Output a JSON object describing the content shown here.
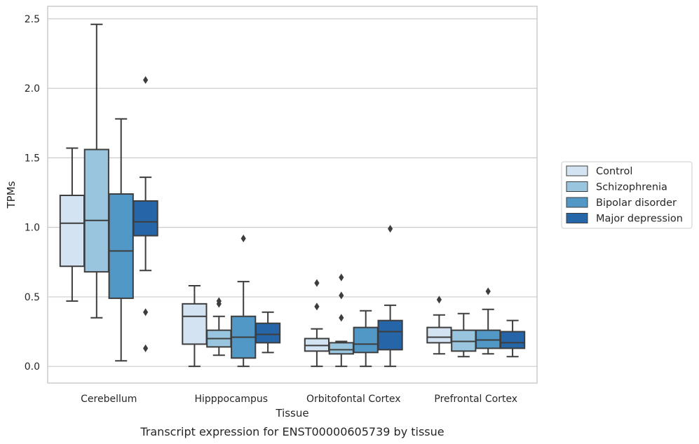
{
  "chart_data": {
    "type": "box",
    "caption": "Transcript expression for ENST00000605739 by tissue",
    "xlabel": "Tissue",
    "ylabel": "TPMs",
    "ylim": [
      -0.12,
      2.59
    ],
    "yticks": [
      0.0,
      0.5,
      1.0,
      1.5,
      2.0,
      2.5
    ],
    "ytick_labels": [
      "0.0",
      "0.5",
      "1.0",
      "1.5",
      "2.0",
      "2.5"
    ],
    "grid": "horizontal",
    "legend_position": "right",
    "categories": [
      "Cerebellum",
      "Hipppocampus",
      "Orbitofontal Cortex",
      "Prefrontal Cortex"
    ],
    "series": [
      {
        "name": "Control",
        "color": "#d3e3f2",
        "boxes": [
          {
            "whisker_low": 0.47,
            "q1": 0.72,
            "median": 1.03,
            "q3": 1.23,
            "whisker_high": 1.57,
            "outliers": []
          },
          {
            "whisker_low": 0.0,
            "q1": 0.16,
            "median": 0.36,
            "q3": 0.45,
            "whisker_high": 0.58,
            "outliers": []
          },
          {
            "whisker_low": 0.0,
            "q1": 0.11,
            "median": 0.15,
            "q3": 0.2,
            "whisker_high": 0.27,
            "outliers": [
              0.43,
              0.6
            ]
          },
          {
            "whisker_low": 0.09,
            "q1": 0.17,
            "median": 0.21,
            "q3": 0.28,
            "whisker_high": 0.37,
            "outliers": [
              0.48
            ]
          }
        ]
      },
      {
        "name": "Schizophrenia",
        "color": "#9ac5de",
        "boxes": [
          {
            "whisker_low": 0.35,
            "q1": 0.68,
            "median": 1.05,
            "q3": 1.56,
            "whisker_high": 2.46,
            "outliers": []
          },
          {
            "whisker_low": 0.08,
            "q1": 0.14,
            "median": 0.2,
            "q3": 0.26,
            "whisker_high": 0.36,
            "outliers": [
              0.45,
              0.47
            ]
          },
          {
            "whisker_low": 0.0,
            "q1": 0.09,
            "median": 0.12,
            "q3": 0.17,
            "whisker_high": 0.18,
            "outliers": [
              0.35,
              0.51,
              0.64
            ]
          },
          {
            "whisker_low": 0.07,
            "q1": 0.11,
            "median": 0.18,
            "q3": 0.26,
            "whisker_high": 0.38,
            "outliers": []
          }
        ]
      },
      {
        "name": "Bipolar disorder",
        "color": "#5198c7",
        "boxes": [
          {
            "whisker_low": 0.04,
            "q1": 0.49,
            "median": 0.83,
            "q3": 1.24,
            "whisker_high": 1.78,
            "outliers": []
          },
          {
            "whisker_low": 0.0,
            "q1": 0.06,
            "median": 0.21,
            "q3": 0.36,
            "whisker_high": 0.61,
            "outliers": [
              0.92
            ]
          },
          {
            "whisker_low": 0.0,
            "q1": 0.1,
            "median": 0.16,
            "q3": 0.28,
            "whisker_high": 0.4,
            "outliers": []
          },
          {
            "whisker_low": 0.09,
            "q1": 0.13,
            "median": 0.19,
            "q3": 0.26,
            "whisker_high": 0.41,
            "outliers": [
              0.54
            ]
          }
        ]
      },
      {
        "name": "Major depression",
        "color": "#2665a8",
        "boxes": [
          {
            "whisker_low": 0.69,
            "q1": 0.94,
            "median": 1.04,
            "q3": 1.19,
            "whisker_high": 1.36,
            "outliers": [
              0.13,
              0.39,
              2.06
            ]
          },
          {
            "whisker_low": 0.1,
            "q1": 0.17,
            "median": 0.23,
            "q3": 0.31,
            "whisker_high": 0.39,
            "outliers": []
          },
          {
            "whisker_low": 0.0,
            "q1": 0.12,
            "median": 0.25,
            "q3": 0.33,
            "whisker_high": 0.44,
            "outliers": [
              0.99
            ]
          },
          {
            "whisker_low": 0.07,
            "q1": 0.13,
            "median": 0.17,
            "q3": 0.25,
            "whisker_high": 0.33,
            "outliers": []
          }
        ]
      }
    ]
  }
}
